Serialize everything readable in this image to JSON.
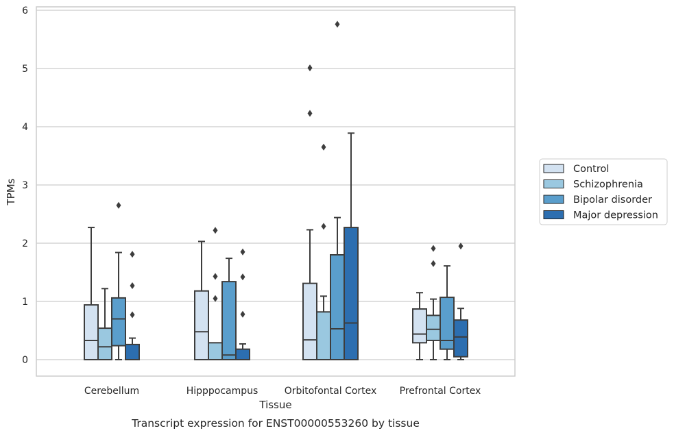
{
  "caption": "Transcript expression for ENST00000553260 by tissue",
  "chart_data": {
    "type": "box",
    "title": "",
    "xlabel": "Tissue",
    "ylabel": "TPMs",
    "ylim": [
      -0.28,
      6.05
    ],
    "yticks": [
      0,
      1,
      2,
      3,
      4,
      5,
      6
    ],
    "grid": "horizontal",
    "legend_position": "center-right, outside plot",
    "categories": [
      "Cerebellum",
      "Hipppocampus",
      "Orbitofontal Cortex",
      "Prefrontal Cortex"
    ],
    "series": [
      {
        "name": "Control",
        "color": "#d3e2f1",
        "boxes": [
          {
            "whislo": 0,
            "q1": 0,
            "med": 0.33,
            "q3": 0.94,
            "whishi": 2.27,
            "fliers": []
          },
          {
            "whislo": 0,
            "q1": 0,
            "med": 0.48,
            "q3": 1.18,
            "whishi": 2.03,
            "fliers": []
          },
          {
            "whislo": 0,
            "q1": 0,
            "med": 0.34,
            "q3": 1.31,
            "whishi": 2.23,
            "fliers": [
              4.23,
              5.01
            ]
          },
          {
            "whislo": 0,
            "q1": 0.29,
            "med": 0.44,
            "q3": 0.87,
            "whishi": 1.15,
            "fliers": []
          }
        ]
      },
      {
        "name": "Schizophrenia",
        "color": "#9ac8e0",
        "boxes": [
          {
            "whislo": 0,
            "q1": 0,
            "med": 0.22,
            "q3": 0.54,
            "whishi": 1.22,
            "fliers": []
          },
          {
            "whislo": 0,
            "q1": 0,
            "med": 0,
            "q3": 0.29,
            "whishi": 0.29,
            "fliers": [
              1.05,
              1.43,
              2.22
            ]
          },
          {
            "whislo": 0,
            "q1": 0,
            "med": 0,
            "q3": 0.82,
            "whishi": 1.09,
            "fliers": [
              2.29,
              3.65
            ]
          },
          {
            "whislo": 0,
            "q1": 0.33,
            "med": 0.52,
            "q3": 0.76,
            "whishi": 1.04,
            "fliers": [
              1.65,
              1.91
            ]
          }
        ]
      },
      {
        "name": "Bipolar disorder",
        "color": "#5a9ecc",
        "boxes": [
          {
            "whislo": 0,
            "q1": 0.24,
            "med": 0.7,
            "q3": 1.06,
            "whishi": 1.84,
            "fliers": [
              2.65
            ]
          },
          {
            "whislo": 0,
            "q1": 0,
            "med": 0.08,
            "q3": 1.34,
            "whishi": 1.74,
            "fliers": []
          },
          {
            "whislo": 0,
            "q1": 0,
            "med": 0.53,
            "q3": 1.8,
            "whishi": 2.44,
            "fliers": [
              5.76
            ]
          },
          {
            "whislo": 0,
            "q1": 0.18,
            "med": 0.33,
            "q3": 1.07,
            "whishi": 1.61,
            "fliers": []
          }
        ]
      },
      {
        "name": "Major depression",
        "color": "#2c6eb0",
        "boxes": [
          {
            "whislo": 0,
            "q1": 0,
            "med": 0,
            "q3": 0.26,
            "whishi": 0.37,
            "fliers": [
              0.77,
              1.27,
              1.81
            ]
          },
          {
            "whislo": 0,
            "q1": 0,
            "med": 0,
            "q3": 0.18,
            "whishi": 0.27,
            "fliers": [
              0.78,
              1.42,
              1.85
            ]
          },
          {
            "whislo": 0,
            "q1": 0,
            "med": 0.63,
            "q3": 2.27,
            "whishi": 3.89,
            "fliers": []
          },
          {
            "whislo": 0,
            "q1": 0.05,
            "med": 0.39,
            "q3": 0.68,
            "whishi": 0.88,
            "fliers": [
              1.95
            ]
          }
        ]
      }
    ]
  }
}
